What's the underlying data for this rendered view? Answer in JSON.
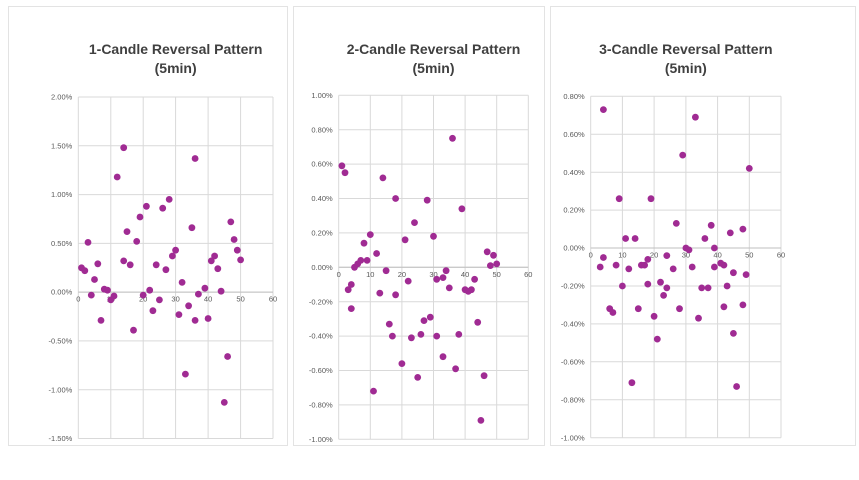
{
  "page": {
    "background": "#ffffff"
  },
  "colors": {
    "dot": "#A02B93",
    "grid": "#D9D9D9",
    "axis": "#BFBFBF",
    "title": "#404040",
    "tick_label": "#595959",
    "panel_border": "#E3E3E3"
  },
  "chart_data": [
    {
      "type": "scatter",
      "title": "1-Candle Reversal Pattern",
      "subtitle": "(5min)",
      "xlabel": "",
      "ylabel": "",
      "xlim": [
        0,
        60
      ],
      "ylim": [
        -1.5,
        2.0
      ],
      "x_ticks": [
        "0",
        "10",
        "20",
        "30",
        "40",
        "50",
        "60"
      ],
      "y_ticks": [
        "2.00%",
        "1.50%",
        "1.00%",
        "0.50%",
        "0.00%",
        "-0.50%",
        "-1.00%",
        "-1.50%"
      ],
      "grid": true,
      "legend": "none",
      "points": [
        [
          1,
          0.25
        ],
        [
          2,
          0.22
        ],
        [
          3,
          0.51
        ],
        [
          4,
          -0.03
        ],
        [
          5,
          0.13
        ],
        [
          6,
          0.29
        ],
        [
          7,
          -0.29
        ],
        [
          8,
          0.03
        ],
        [
          9,
          0.02
        ],
        [
          10,
          -0.08
        ],
        [
          11,
          -0.04
        ],
        [
          12,
          1.18
        ],
        [
          14,
          1.48
        ],
        [
          14,
          0.32
        ],
        [
          15,
          0.62
        ],
        [
          16,
          0.28
        ],
        [
          17,
          -0.39
        ],
        [
          18,
          0.52
        ],
        [
          19,
          0.77
        ],
        [
          20,
          -0.03
        ],
        [
          21,
          0.88
        ],
        [
          22,
          0.02
        ],
        [
          23,
          -0.19
        ],
        [
          24,
          0.28
        ],
        [
          25,
          -0.08
        ],
        [
          26,
          0.86
        ],
        [
          27,
          0.23
        ],
        [
          28,
          0.95
        ],
        [
          29,
          0.37
        ],
        [
          30,
          0.43
        ],
        [
          31,
          -0.23
        ],
        [
          32,
          0.1
        ],
        [
          33,
          -0.84
        ],
        [
          34,
          -0.14
        ],
        [
          35,
          0.66
        ],
        [
          36,
          1.37
        ],
        [
          36,
          -0.29
        ],
        [
          37,
          -0.02
        ],
        [
          39,
          0.04
        ],
        [
          40,
          -0.27
        ],
        [
          41,
          0.32
        ],
        [
          42,
          0.37
        ],
        [
          43,
          0.24
        ],
        [
          44,
          0.01
        ],
        [
          45,
          -1.13
        ],
        [
          46,
          -0.66
        ],
        [
          47,
          0.72
        ],
        [
          48,
          0.54
        ],
        [
          49,
          0.43
        ],
        [
          50,
          0.33
        ]
      ]
    },
    {
      "type": "scatter",
      "title": "2-Candle Reversal Pattern",
      "subtitle": "(5min)",
      "xlabel": "",
      "ylabel": "",
      "xlim": [
        0,
        60
      ],
      "ylim": [
        -1.0,
        1.0
      ],
      "x_ticks": [
        "0",
        "10",
        "20",
        "30",
        "40",
        "50",
        "60"
      ],
      "y_ticks": [
        "1.00%",
        "0.80%",
        "0.60%",
        "0.40%",
        "0.20%",
        "0.00%",
        "-0.20%",
        "-0.40%",
        "-0.60%",
        "-0.80%",
        "-1.00%"
      ],
      "grid": true,
      "legend": "none",
      "points": [
        [
          1,
          0.59
        ],
        [
          2,
          0.55
        ],
        [
          3,
          -0.13
        ],
        [
          4,
          -0.1
        ],
        [
          4,
          -0.24
        ],
        [
          5,
          0.0
        ],
        [
          6,
          0.02
        ],
        [
          7,
          0.04
        ],
        [
          8,
          0.14
        ],
        [
          9,
          0.04
        ],
        [
          10,
          0.19
        ],
        [
          11,
          -0.72
        ],
        [
          12,
          0.08
        ],
        [
          13,
          -0.15
        ],
        [
          14,
          0.52
        ],
        [
          15,
          -0.02
        ],
        [
          16,
          -0.33
        ],
        [
          17,
          -0.4
        ],
        [
          18,
          0.4
        ],
        [
          18,
          -0.16
        ],
        [
          20,
          -0.56
        ],
        [
          21,
          0.16
        ],
        [
          22,
          -0.08
        ],
        [
          23,
          -0.41
        ],
        [
          24,
          0.26
        ],
        [
          25,
          -0.64
        ],
        [
          26,
          -0.39
        ],
        [
          27,
          -0.31
        ],
        [
          28,
          0.39
        ],
        [
          29,
          -0.29
        ],
        [
          30,
          0.18
        ],
        [
          31,
          -0.07
        ],
        [
          31,
          -0.4
        ],
        [
          33,
          -0.06
        ],
        [
          33,
          -0.52
        ],
        [
          34,
          -0.02
        ],
        [
          35,
          -0.12
        ],
        [
          36,
          0.75
        ],
        [
          37,
          -0.59
        ],
        [
          38,
          -0.39
        ],
        [
          39,
          0.34
        ],
        [
          40,
          -0.13
        ],
        [
          41,
          -0.14
        ],
        [
          42,
          -0.13
        ],
        [
          43,
          -0.07
        ],
        [
          44,
          -0.32
        ],
        [
          45,
          -0.89
        ],
        [
          46,
          -0.63
        ],
        [
          47,
          0.09
        ],
        [
          48,
          0.01
        ],
        [
          49,
          0.07
        ],
        [
          50,
          0.02
        ]
      ]
    },
    {
      "type": "scatter",
      "title": "3-Candle Reversal Pattern",
      "subtitle": "(5min)",
      "xlabel": "",
      "ylabel": "",
      "xlim": [
        0,
        60
      ],
      "ylim": [
        -1.0,
        0.8
      ],
      "x_ticks": [
        "0",
        "10",
        "20",
        "30",
        "40",
        "50",
        "60"
      ],
      "y_ticks": [
        "0.80%",
        "0.60%",
        "0.40%",
        "0.20%",
        "0.00%",
        "-0.20%",
        "-0.40%",
        "-0.60%",
        "-0.80%",
        "-1.00%"
      ],
      "grid": true,
      "legend": "none",
      "points": [
        [
          3,
          -0.1
        ],
        [
          4,
          0.73
        ],
        [
          4,
          -0.05
        ],
        [
          6,
          -0.32
        ],
        [
          7,
          -0.34
        ],
        [
          8,
          -0.09
        ],
        [
          9,
          0.26
        ],
        [
          10,
          -0.2
        ],
        [
          11,
          0.05
        ],
        [
          12,
          -0.11
        ],
        [
          13,
          -0.71
        ],
        [
          14,
          0.05
        ],
        [
          15,
          -0.32
        ],
        [
          16,
          -0.09
        ],
        [
          17,
          -0.09
        ],
        [
          18,
          -0.06
        ],
        [
          18,
          -0.19
        ],
        [
          19,
          0.26
        ],
        [
          20,
          -0.36
        ],
        [
          21,
          -0.48
        ],
        [
          22,
          -0.18
        ],
        [
          23,
          -0.25
        ],
        [
          24,
          -0.04
        ],
        [
          24,
          -0.21
        ],
        [
          26,
          -0.11
        ],
        [
          27,
          0.13
        ],
        [
          28,
          -0.32
        ],
        [
          29,
          0.49
        ],
        [
          30,
          0.0
        ],
        [
          31,
          -0.01
        ],
        [
          32,
          -0.1
        ],
        [
          33,
          0.69
        ],
        [
          34,
          -0.37
        ],
        [
          35,
          -0.21
        ],
        [
          36,
          0.05
        ],
        [
          37,
          -0.21
        ],
        [
          38,
          0.12
        ],
        [
          39,
          0.0
        ],
        [
          39,
          -0.1
        ],
        [
          41,
          -0.08
        ],
        [
          42,
          -0.09
        ],
        [
          42,
          -0.31
        ],
        [
          43,
          -0.2
        ],
        [
          44,
          0.08
        ],
        [
          45,
          -0.13
        ],
        [
          45,
          -0.45
        ],
        [
          46,
          -0.73
        ],
        [
          48,
          0.1
        ],
        [
          48,
          -0.3
        ],
        [
          49,
          -0.14
        ],
        [
          50,
          0.42
        ]
      ]
    }
  ]
}
